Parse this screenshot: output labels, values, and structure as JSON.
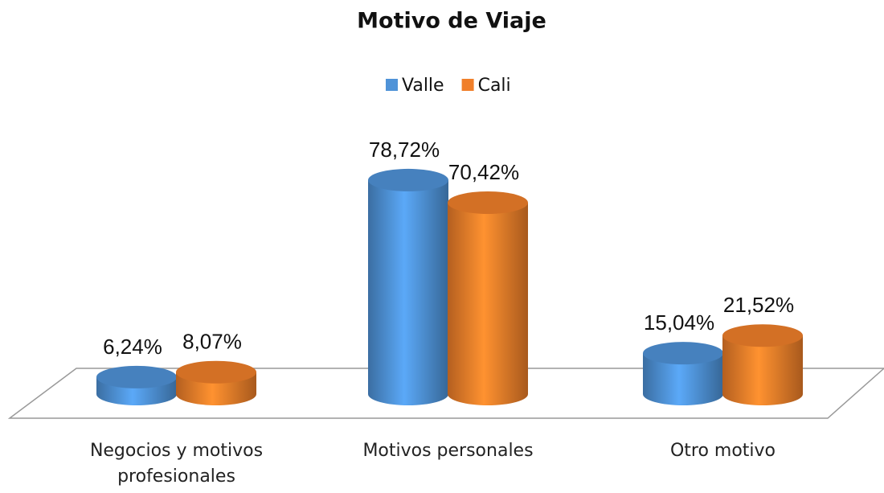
{
  "chart_data": {
    "type": "bar3d",
    "title": "Motivo de Viaje",
    "categories": [
      "Negocios y motivos profesionales",
      "Motivos personales",
      "Otro motivo"
    ],
    "series": [
      {
        "name": "Valle",
        "color": "#4f93d8",
        "values": [
          6.24,
          78.72,
          15.04
        ],
        "value_labels": [
          "6,24%",
          "78,72%",
          "15,04%"
        ]
      },
      {
        "name": "Cali",
        "color": "#f07f2a",
        "values": [
          8.07,
          70.42,
          21.52
        ],
        "value_labels": [
          "8,07%",
          "70,42%",
          "21,52%"
        ]
      }
    ],
    "legend": "top"
  }
}
